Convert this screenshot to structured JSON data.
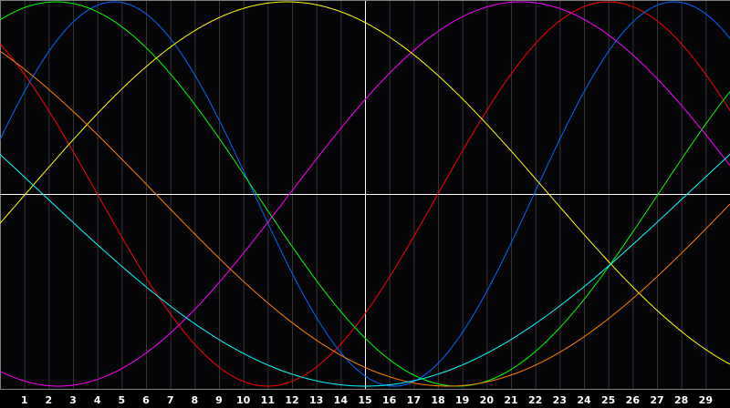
{
  "chart_data": {
    "type": "line",
    "xlim": [
      0,
      30
    ],
    "ylim": [
      -1,
      1
    ],
    "grid": true,
    "x_ticks": [
      1,
      2,
      3,
      4,
      5,
      6,
      7,
      8,
      9,
      10,
      11,
      12,
      13,
      14,
      15,
      16,
      17,
      18,
      19,
      20,
      21,
      22,
      23,
      24,
      25,
      26,
      27,
      28,
      29
    ],
    "highlight_day": 15,
    "colors": {
      "background": "#050508",
      "grid": "#333338",
      "axis": "#ffffff",
      "border": "#808080"
    },
    "series": [
      {
        "color": "#ff0000",
        "period": 28,
        "peak_day": 25.0
      },
      {
        "color": "#0066ff",
        "period": 23,
        "peak_day": 4.7
      },
      {
        "color": "#00ff00",
        "period": 33,
        "peak_day": 2.3
      },
      {
        "color": "#ff00ff",
        "period": 38,
        "peak_day": 21.4
      },
      {
        "color": "#ffff00",
        "period": 43,
        "peak_day": 11.8
      },
      {
        "color": "#ff8000",
        "period": 48,
        "peak_day": -5.6
      },
      {
        "color": "#00ffff",
        "period": 53,
        "peak_day": -11.5
      }
    ]
  }
}
